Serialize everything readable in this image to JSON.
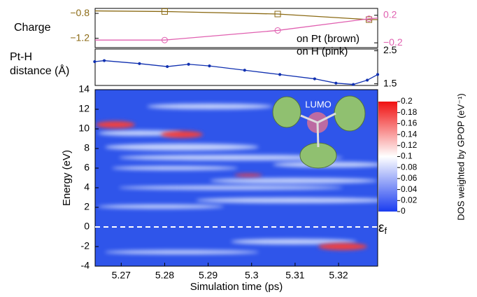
{
  "chart_data": [
    {
      "type": "line",
      "title": "Charge",
      "xlim": [
        5.264,
        5.329
      ],
      "ylim": [
        -1.35,
        -0.72
      ],
      "y2lim": [
        -0.27,
        0.3
      ],
      "yticks": [
        {
          "value": -0.8,
          "label": "−0.8"
        },
        {
          "value": -1.2,
          "label": "−1.2"
        }
      ],
      "y2ticks": [
        0.2,
        {
          "value": -0.2,
          "label": "−0.2"
        }
      ],
      "series": [
        {
          "name": "on Pt (brown)",
          "color": "#8b6a14",
          "x": [
            5.264,
            5.28,
            5.306,
            5.327,
            5.329
          ],
          "values": [
            -0.76,
            -0.77,
            -0.81,
            -0.9,
            -0.9
          ]
        },
        {
          "name": "on H (pink)",
          "color": "#e060b0",
          "axis": "y2",
          "x": [
            5.264,
            5.28,
            5.306,
            5.327,
            5.329
          ],
          "values": [
            -0.16,
            -0.16,
            -0.02,
            0.15,
            0.16
          ]
        }
      ]
    },
    {
      "type": "line",
      "title": "Pt-H",
      "subtitle": "distance (Å)",
      "xlim": [
        5.264,
        5.329
      ],
      "y2lim": [
        1.45,
        2.55
      ],
      "y2ticks": [
        2.5,
        1.5
      ],
      "series": [
        {
          "color": "#1030b0",
          "axis": "y2",
          "x": [
            5.2639,
            5.2661,
            5.2742,
            5.2806,
            5.2855,
            5.2903,
            5.2984,
            5.3065,
            5.3145,
            5.3194,
            5.3234,
            5.3266,
            5.329
          ],
          "values": [
            2.17,
            2.2,
            2.11,
            2.02,
            2.09,
            2.04,
            1.91,
            1.78,
            1.65,
            1.52,
            1.48,
            1.61,
            1.78
          ]
        }
      ]
    },
    {
      "type": "heatmap",
      "xlabel": "Simulation time (ps)",
      "ylabel": "Energy (eV)",
      "annotation": "LUMO",
      "fermi_label": "ε",
      "fermi_sub": "f",
      "xlim": [
        5.264,
        5.329
      ],
      "ylim": [
        -4,
        14
      ],
      "xticks": [
        5.27,
        5.28,
        5.29,
        5.3,
        5.31,
        5.32
      ],
      "yticks": [
        14,
        12,
        10,
        8,
        6,
        4,
        2,
        0,
        -2,
        -4
      ],
      "colorbar_label": "DOS weighted by GPOP (eV⁻¹)",
      "clim": [
        0,
        0.2
      ],
      "cticks": [
        0,
        0.02,
        0.04,
        0.06,
        0.08,
        0.1,
        0.12,
        0.14,
        0.16,
        0.18,
        0.2
      ]
    }
  ]
}
